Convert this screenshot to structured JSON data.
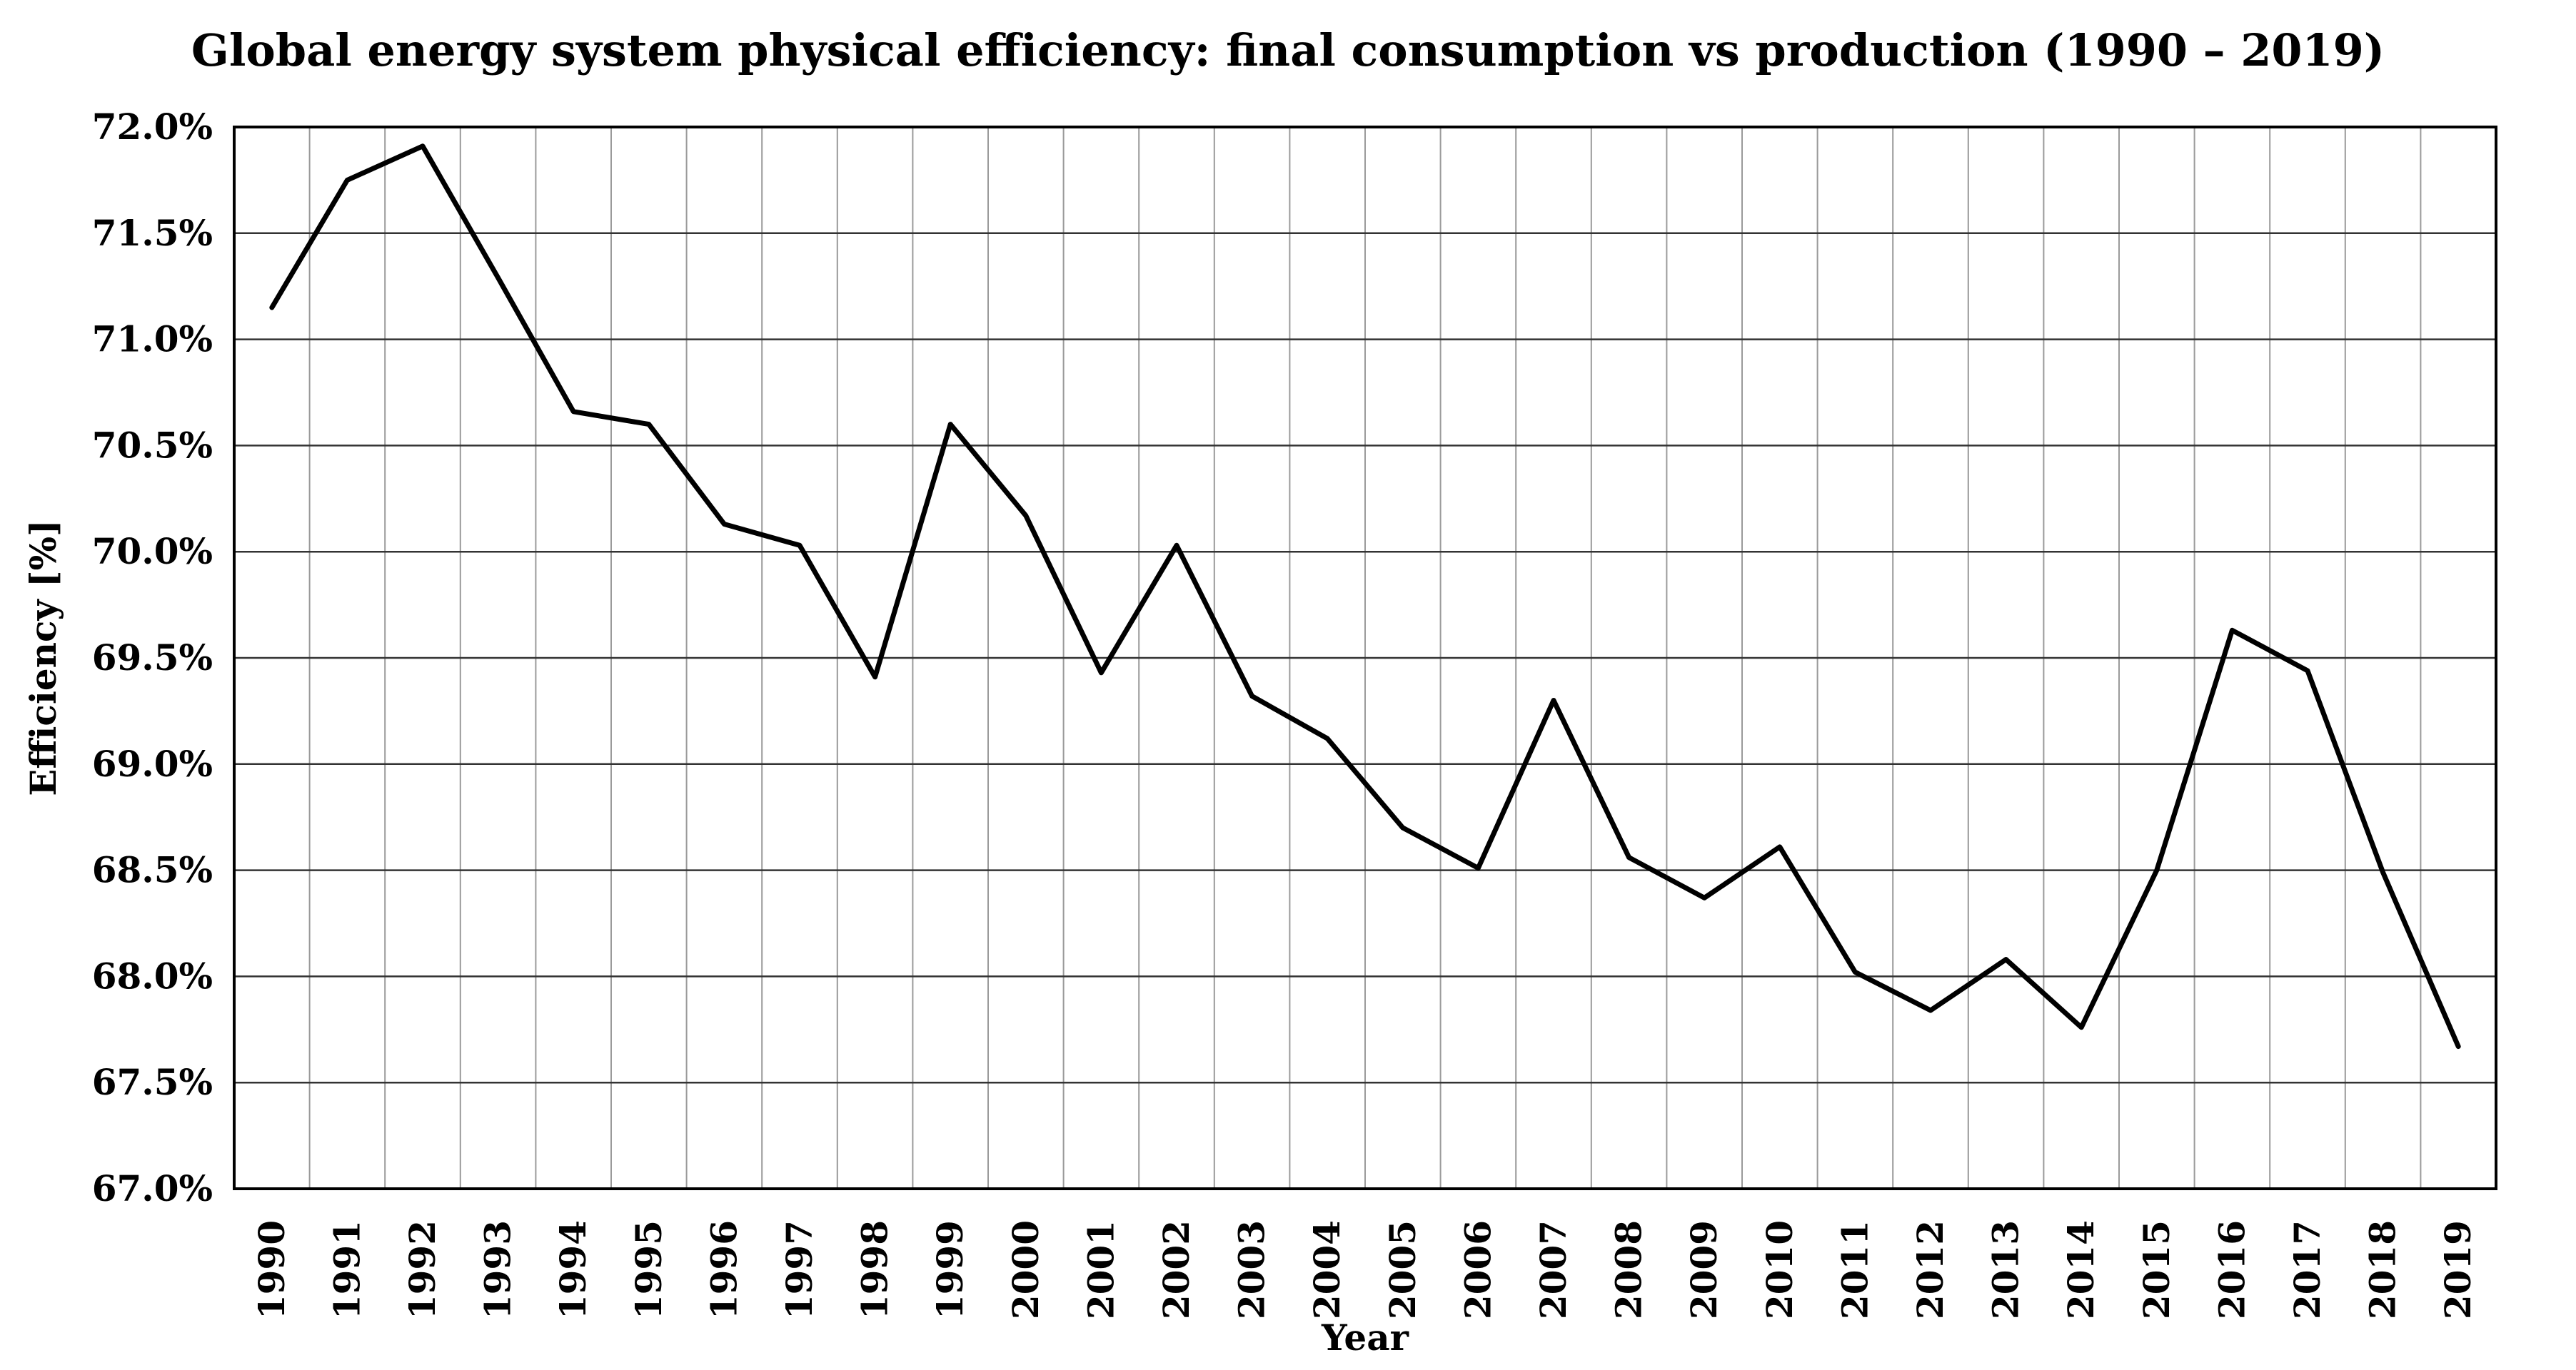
{
  "chart_data": {
    "type": "line",
    "title": "Global energy system physical efficiency: final consumption vs production (1990 – 2019)",
    "xlabel": "Year",
    "ylabel": "Efficiency [%]",
    "ylim": [
      67.0,
      72.0
    ],
    "y_ticks": [
      67.0,
      67.5,
      68.0,
      68.5,
      69.0,
      69.5,
      70.0,
      70.5,
      71.0,
      71.5,
      72.0
    ],
    "y_tick_labels": [
      "67.0%",
      "67.5%",
      "68.0%",
      "68.5%",
      "69.0%",
      "69.5%",
      "70.0%",
      "70.5%",
      "71.0%",
      "71.5%",
      "72.0%"
    ],
    "grid": true,
    "legend": "none",
    "line_color": "#000000",
    "categories": [
      "1990",
      "1991",
      "1992",
      "1993",
      "1994",
      "1995",
      "1996",
      "1997",
      "1998",
      "1999",
      "2000",
      "2001",
      "2002",
      "2003",
      "2004",
      "2005",
      "2006",
      "2007",
      "2008",
      "2009",
      "2010",
      "2011",
      "2012",
      "2013",
      "2014",
      "2015",
      "2016",
      "2017",
      "2018",
      "2019"
    ],
    "values": [
      71.15,
      71.75,
      71.91,
      71.29,
      70.66,
      70.6,
      70.13,
      70.03,
      69.41,
      70.6,
      70.17,
      69.43,
      70.03,
      69.32,
      69.12,
      68.7,
      68.51,
      69.3,
      68.56,
      68.37,
      68.61,
      68.02,
      67.84,
      68.08,
      67.76,
      68.5,
      69.63,
      69.44,
      68.49,
      67.67
    ]
  }
}
